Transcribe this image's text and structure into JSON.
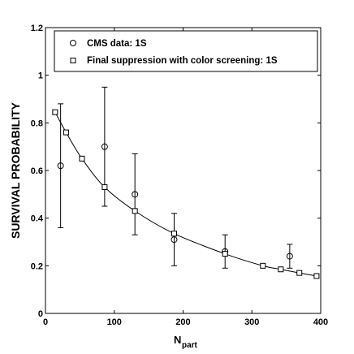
{
  "chart_data": {
    "type": "scatter",
    "title": "",
    "xlabel": "N",
    "xlabel_sub": "part",
    "ylabel": "SURVIVAL PROBABILITY",
    "xlim": [
      0,
      400
    ],
    "ylim": [
      0,
      1.2
    ],
    "xticks": [
      0,
      100,
      200,
      300,
      400
    ],
    "yticks": [
      0,
      0.2,
      0.4,
      0.6,
      0.8,
      1,
      1.2
    ],
    "xtick_labels": [
      "0",
      "100",
      "200",
      "300",
      "400"
    ],
    "ytick_labels": [
      "0",
      "0.2",
      "0.4",
      "0.6",
      "0.8",
      "1",
      "1.2"
    ],
    "grid": false,
    "legend_position": "top",
    "series": [
      {
        "name": "CMS data: 1S",
        "marker": "circle",
        "x": [
          22,
          86,
          130,
          187,
          261,
          355
        ],
        "y": [
          0.62,
          0.7,
          0.5,
          0.31,
          0.26,
          0.24
        ],
        "err_low": [
          0.36,
          0.45,
          0.33,
          0.2,
          0.19,
          0.19
        ],
        "err_high": [
          0.88,
          0.95,
          0.67,
          0.42,
          0.33,
          0.29
        ]
      },
      {
        "name": "Final suppression with color screening: 1S",
        "marker": "square",
        "line": true,
        "x": [
          14,
          30,
          53,
          86,
          130,
          187,
          261,
          316,
          342,
          369,
          394
        ],
        "y": [
          0.845,
          0.76,
          0.65,
          0.53,
          0.43,
          0.335,
          0.25,
          0.2,
          0.185,
          0.17,
          0.157
        ]
      }
    ]
  }
}
